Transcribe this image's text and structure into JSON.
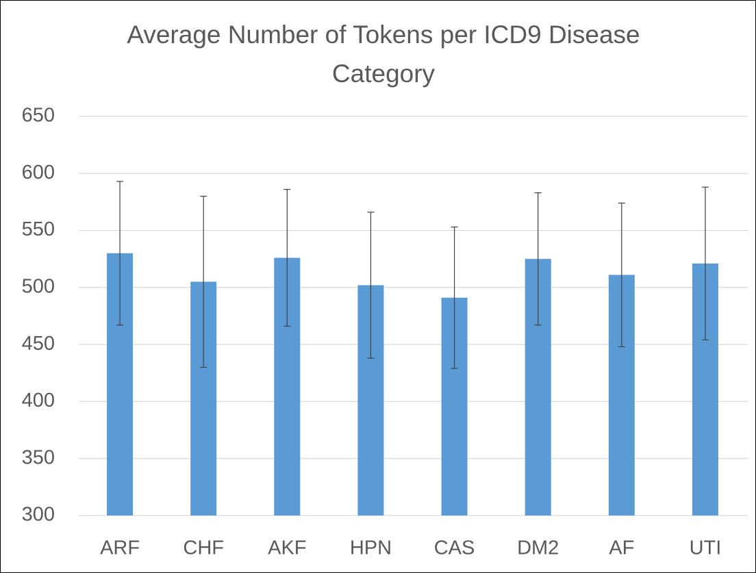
{
  "chart_data": {
    "type": "bar",
    "title": "Average Number of Tokens per ICD9 Disease Category",
    "categories": [
      "ARF",
      "CHF",
      "AKF",
      "HPN",
      "CAS",
      "DM2",
      "AF",
      "UTI"
    ],
    "values": [
      530,
      505,
      526,
      502,
      491,
      525,
      511,
      521
    ],
    "errors": [
      63,
      75,
      60,
      64,
      62,
      58,
      63,
      67
    ],
    "color": "#5b9bd5",
    "ylim": [
      300,
      650
    ],
    "yticks": [
      300,
      350,
      400,
      450,
      500,
      550,
      600,
      650
    ],
    "grid": true
  }
}
